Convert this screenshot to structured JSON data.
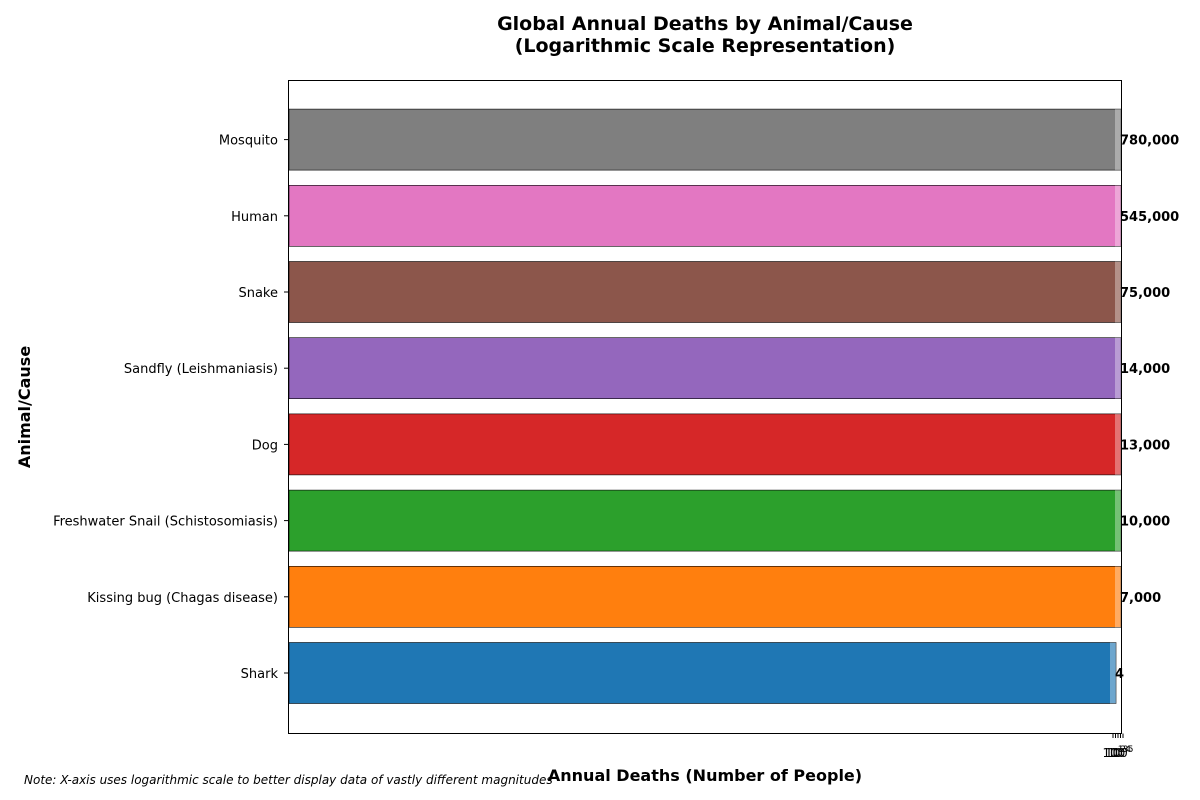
{
  "chart_data": {
    "type": "bar",
    "orientation": "horizontal",
    "title": "Global Annual Deaths by Animal/Cause",
    "subtitle": "(Logarithmic Scale Representation)",
    "xlabel": "Annual Deaths (Number of People)",
    "ylabel": "Animal/Cause",
    "x_scale": "log",
    "grid": false,
    "categories": [
      "Shark",
      "Kissing bug (Chagas disease)",
      "Freshwater Snail (Schistosomiasis)",
      "Dog",
      "Sandfly (Leishmaniasis)",
      "Snake",
      "Human",
      "Mosquito"
    ],
    "values": [
      4,
      7000,
      10000,
      13000,
      14000,
      75000,
      545000,
      780000
    ],
    "value_labels": [
      "4",
      "7,000",
      "10,000",
      "13,000",
      "14,000",
      "75,000",
      "545,000",
      "780,000"
    ],
    "colors": [
      "#1f77b4",
      "#ff7f0e",
      "#2ca02c",
      "#d62728",
      "#9467bd",
      "#8c564b",
      "#e377c2",
      "#7f7f7f"
    ],
    "x_tick_labels": [
      "10^1",
      "10^2",
      "10^3",
      "10^4",
      "10^5"
    ]
  },
  "note": "Note: X-axis uses logarithmic scale to better display data of vastly different magnitudes"
}
